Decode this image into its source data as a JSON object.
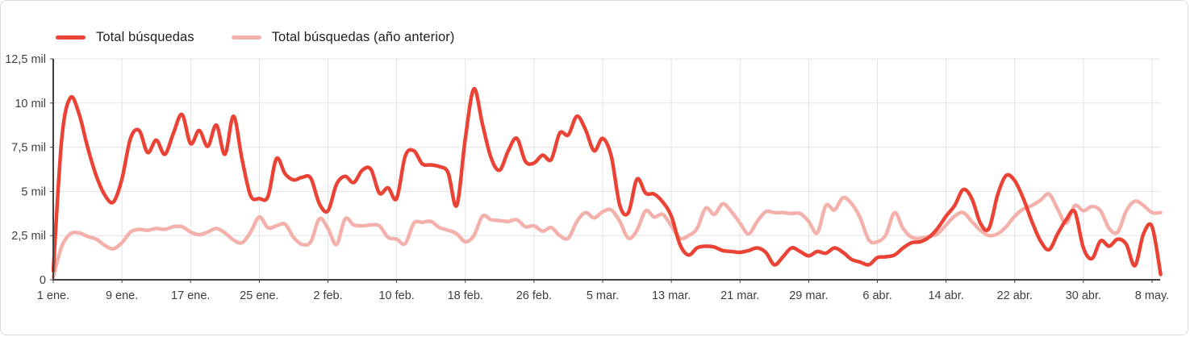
{
  "legend": [
    {
      "label": "Total búsquedas",
      "color": "#ea4335"
    },
    {
      "label": "Total búsquedas (año anterior)",
      "color": "#f4b1ab"
    }
  ],
  "chart_data": {
    "type": "line",
    "title": "",
    "xlabel": "",
    "ylabel": "",
    "ylim": [
      0,
      12500
    ],
    "x_unit": "day-index from 1 ene. (leap year, 8-day tick spacing)",
    "grid": true,
    "legend_position": "top-left",
    "colors": {
      "axis": "#424242",
      "gridline": "#e3e3e3",
      "label": "#3c4043"
    },
    "y_ticks": [
      {
        "label": "0",
        "value": 0
      },
      {
        "label": "2,5 mil",
        "value": 2500
      },
      {
        "label": "5 mil",
        "value": 5000
      },
      {
        "label": "7,5 mil",
        "value": 7500
      },
      {
        "label": "10 mil",
        "value": 10000
      },
      {
        "label": "12,5 mil",
        "value": 12500
      }
    ],
    "x_ticks": [
      {
        "label": "1 ene.",
        "day": 0
      },
      {
        "label": "9 ene.",
        "day": 8
      },
      {
        "label": "17 ene.",
        "day": 16
      },
      {
        "label": "25 ene.",
        "day": 24
      },
      {
        "label": "2 feb.",
        "day": 32
      },
      {
        "label": "10 feb.",
        "day": 40
      },
      {
        "label": "18 feb.",
        "day": 48
      },
      {
        "label": "26 feb.",
        "day": 56
      },
      {
        "label": "5 mar.",
        "day": 64
      },
      {
        "label": "13 mar.",
        "day": 72
      },
      {
        "label": "21 mar.",
        "day": 80
      },
      {
        "label": "29 mar.",
        "day": 88
      },
      {
        "label": "6 abr.",
        "day": 96
      },
      {
        "label": "14 abr.",
        "day": 104
      },
      {
        "label": "22 abr.",
        "day": 112
      },
      {
        "label": "30 abr.",
        "day": 120
      },
      {
        "label": "8 may.",
        "day": 128
      }
    ],
    "series": [
      {
        "name": "Total búsquedas",
        "color": "#ea4335",
        "stroke_width": 4.5,
        "values": [
          500,
          8000,
          10300,
          9400,
          7500,
          5900,
          4800,
          4400,
          5700,
          8000,
          8450,
          7200,
          7900,
          7100,
          8300,
          9350,
          7700,
          8450,
          7550,
          8750,
          7100,
          9250,
          6800,
          4750,
          4600,
          4700,
          6850,
          6000,
          5650,
          5800,
          5750,
          4300,
          3900,
          5400,
          5850,
          5500,
          6200,
          6250,
          4900,
          5200,
          4600,
          7000,
          7300,
          6550,
          6500,
          6400,
          6050,
          4200,
          8000,
          10800,
          8800,
          6900,
          6200,
          7300,
          8000,
          6700,
          6600,
          7050,
          6800,
          8300,
          8200,
          9250,
          8500,
          7300,
          8000,
          7000,
          4200,
          3800,
          5700,
          4900,
          4850,
          4400,
          3600,
          2000,
          1400,
          1800,
          1900,
          1850,
          1650,
          1600,
          1550,
          1650,
          1800,
          1550,
          850,
          1300,
          1800,
          1600,
          1350,
          1600,
          1500,
          1800,
          1550,
          1150,
          1000,
          850,
          1250,
          1300,
          1400,
          1800,
          2100,
          2150,
          2400,
          2900,
          3600,
          4200,
          5100,
          4600,
          3200,
          2900,
          4800,
          5900,
          5600,
          4600,
          3300,
          2200,
          1700,
          2600,
          3400,
          3850,
          1800,
          1200,
          2200,
          1900,
          2300,
          2000,
          800,
          2600,
          3000,
          300
        ]
      },
      {
        "name": "Total búsquedas (año anterior)",
        "color": "#f4b1ab",
        "stroke_width": 4.5,
        "values": [
          150,
          1900,
          2600,
          2650,
          2450,
          2300,
          1950,
          1750,
          2100,
          2700,
          2850,
          2800,
          2900,
          2850,
          3000,
          3000,
          2700,
          2550,
          2700,
          2900,
          2650,
          2250,
          2100,
          2700,
          3550,
          2950,
          3050,
          3150,
          2400,
          2000,
          2150,
          3450,
          2900,
          2000,
          3450,
          3100,
          3050,
          3100,
          3050,
          2400,
          2300,
          2050,
          3200,
          3250,
          3300,
          2950,
          2800,
          2600,
          2150,
          2500,
          3600,
          3400,
          3350,
          3300,
          3400,
          3000,
          3050,
          2750,
          2950,
          2500,
          2350,
          3300,
          3800,
          3500,
          3850,
          3950,
          3300,
          2350,
          2800,
          3900,
          3550,
          3700,
          3050,
          2350,
          2500,
          2900,
          4050,
          3700,
          4300,
          3850,
          3200,
          2600,
          3300,
          3850,
          3800,
          3800,
          3750,
          3750,
          3300,
          2650,
          4200,
          3950,
          4650,
          4300,
          3500,
          2250,
          2150,
          2550,
          3800,
          2900,
          2400,
          2350,
          2450,
          2600,
          3100,
          3600,
          3800,
          3300,
          2800,
          2500,
          2600,
          3000,
          3600,
          4000,
          4200,
          4500,
          4850,
          4000,
          3200,
          4200,
          3900,
          4150,
          3900,
          2900,
          2700,
          3900,
          4450,
          4200,
          3800,
          3800
        ]
      }
    ]
  }
}
